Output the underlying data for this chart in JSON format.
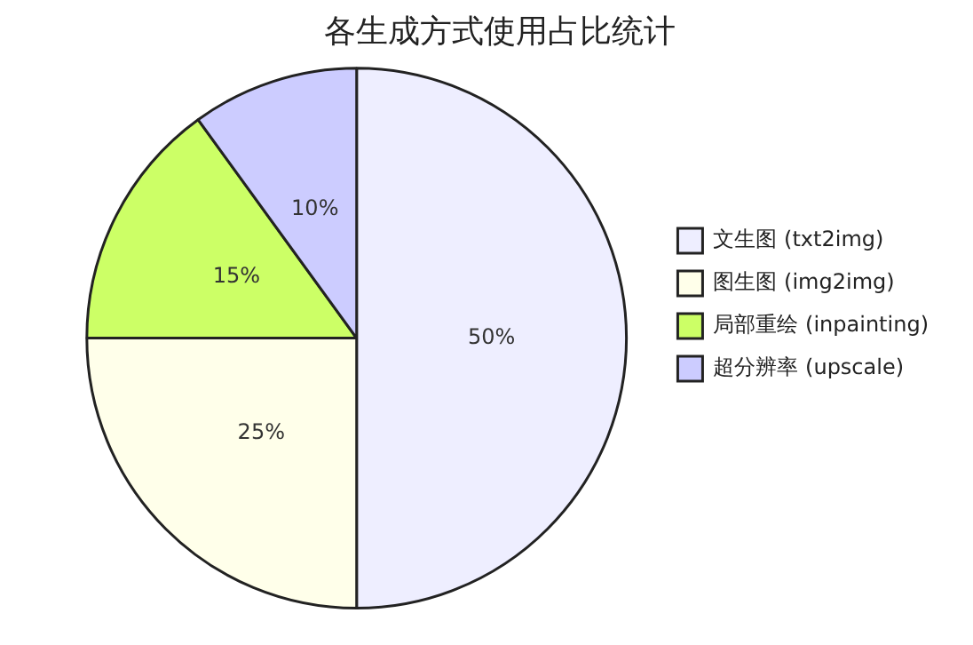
{
  "chart_data": {
    "type": "pie",
    "title": "各生成方式使用占比统计",
    "categories": [
      "文生图 (txt2img)",
      "图生图 (img2img)",
      "局部重绘 (inpainting)",
      "超分辨率 (upscale)"
    ],
    "values": [
      50,
      25,
      15,
      10
    ],
    "colors": [
      "#eeeeff",
      "#ffffea",
      "#ccff66",
      "#ccccff"
    ],
    "value_labels": [
      "50%",
      "25%",
      "15%",
      "10%"
    ],
    "legend": "right"
  }
}
